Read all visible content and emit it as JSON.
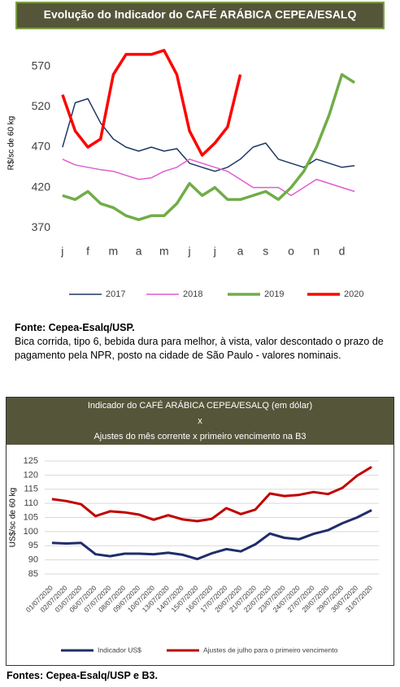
{
  "chart_data": [
    {
      "type": "line",
      "title": "Evolução do Indicador do CAFÉ ARÁBICA CEPEA/ESALQ",
      "y_label": "R$/sc de 60 kg",
      "x": [
        0,
        0.5,
        1,
        1.5,
        2,
        2.5,
        3,
        3.5,
        4,
        4.5,
        5,
        5.5,
        6,
        6.5,
        7,
        7.5,
        8,
        8.5,
        9,
        9.5,
        10,
        10.5,
        11,
        11.5
      ],
      "xlim": [
        -0.22,
        12.2
      ],
      "xticks": [
        {
          "value": 0,
          "label": "j"
        },
        {
          "value": 1,
          "label": "f"
        },
        {
          "value": 2,
          "label": "m"
        },
        {
          "value": 3,
          "label": "a"
        },
        {
          "value": 4,
          "label": "m"
        },
        {
          "value": 5,
          "label": "j"
        },
        {
          "value": 6,
          "label": "j"
        },
        {
          "value": 7,
          "label": "a"
        },
        {
          "value": 8,
          "label": "s"
        },
        {
          "value": 9,
          "label": "o"
        },
        {
          "value": 10,
          "label": "n"
        },
        {
          "value": 11,
          "label": "d"
        }
      ],
      "ylim": [
        350,
        600
      ],
      "yticks": [
        370,
        420,
        470,
        520,
        570
      ],
      "grid": false,
      "legend": "bottom",
      "series": [
        {
          "name": "2017",
          "color": "#1f3864",
          "width": 1.5,
          "values": [
            470,
            525,
            530,
            500,
            480,
            470,
            465,
            470,
            465,
            468,
            450,
            445,
            440,
            445,
            455,
            470,
            475,
            455,
            450,
            445,
            455,
            450,
            445,
            447
          ]
        },
        {
          "name": "2018",
          "color": "#e05cd0",
          "width": 1.5,
          "values": [
            455,
            448,
            445,
            442,
            440,
            435,
            430,
            432,
            440,
            445,
            455,
            450,
            445,
            440,
            430,
            420,
            420,
            420,
            410,
            420,
            430,
            425,
            420,
            415
          ]
        },
        {
          "name": "2019",
          "color": "#70ad47",
          "width": 3.5,
          "values": [
            410,
            405,
            415,
            400,
            395,
            385,
            380,
            385,
            385,
            400,
            425,
            410,
            420,
            405,
            405,
            410,
            415,
            405,
            420,
            440,
            470,
            510,
            560,
            550
          ]
        },
        {
          "name": "2020",
          "color": "#ff0000",
          "width": 3.5,
          "values": [
            535,
            490,
            470,
            480,
            560,
            585,
            585,
            585,
            590,
            560,
            490,
            460,
            475,
            495,
            560,
            null,
            null,
            null,
            null,
            null,
            null,
            null,
            null,
            null
          ]
        }
      ],
      "source": "Fonte: Cepea-Esalq/USP.",
      "note": "Bica corrida, tipo 6, bebida dura para melhor, à vista, valor descontado o prazo de pagamento pela NPR, posto na cidade de São Paulo - valores nominais."
    },
    {
      "type": "line",
      "title": [
        "Indicador do CAFÉ ARÁBICA CEPEA/ESALQ (em dólar)",
        "x",
        "Ajustes do mês corrente x primeiro vencimento na B3"
      ],
      "y_label": "US$/sc de 60 kg",
      "categories": [
        "01/07/2020",
        "02/07/2020",
        "03/07/2020",
        "06/07/2020",
        "07/07/2020",
        "08/07/2020",
        "09/07/2020",
        "10/07/2020",
        "13/07/2020",
        "14/07/2020",
        "15/07/2020",
        "16/07/2020",
        "17/07/2020",
        "20/07/2020",
        "21/07/2020",
        "22/07/2020",
        "23/07/2020",
        "24/07/2020",
        "27/07/2020",
        "28/07/2020",
        "29/07/2020",
        "30/07/2020",
        "31/07/2020"
      ],
      "ylim": [
        85,
        125
      ],
      "yticks": [
        85,
        90,
        95,
        100,
        105,
        110,
        115,
        120,
        125
      ],
      "grid": true,
      "legend": "bottom",
      "series": [
        {
          "name": "Indicador US$",
          "color": "#1f2d6b",
          "width": 3,
          "values": [
            96,
            95.8,
            96,
            92,
            91.3,
            92.2,
            92.2,
            92,
            92.5,
            91.8,
            90.3,
            92.3,
            93.8,
            93,
            95.5,
            99.3,
            97.8,
            97.3,
            99.2,
            100.5,
            103,
            105,
            107.6
          ]
        },
        {
          "name": "Ajustes de julho para o primeiro vencimento",
          "color": "#c00000",
          "width": 3,
          "values": [
            111.5,
            110.8,
            109.7,
            105.5,
            107.2,
            106.8,
            106,
            104.2,
            105.8,
            104.3,
            103.7,
            104.5,
            108.3,
            106.2,
            107.8,
            113.5,
            112.6,
            113,
            114,
            113.3,
            115.5,
            119.8,
            122.9
          ]
        }
      ],
      "source": "Fontes: Cepea-Esalq/USP e B3."
    }
  ]
}
